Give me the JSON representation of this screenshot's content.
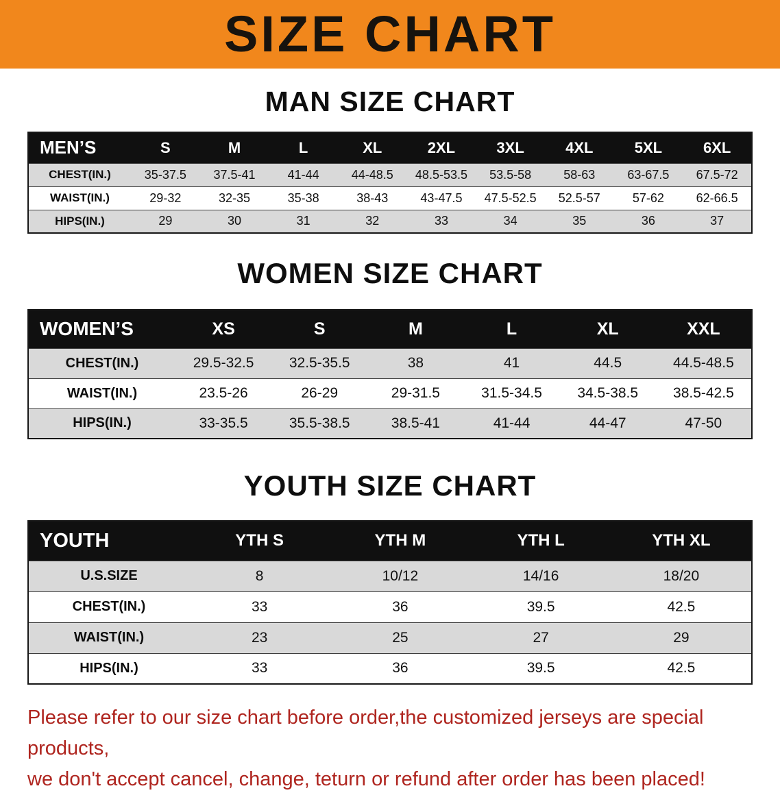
{
  "banner": {
    "title": "SIZE CHART"
  },
  "colors": {
    "banner_bg": "#F1871C",
    "header_bg": "#101010",
    "row_alt": "#d9d9d9",
    "note_red": "#AF251F"
  },
  "sections": [
    {
      "heading": "MAN SIZE CHART",
      "table": {
        "title": "MEN’S",
        "header": [
          "MEN’S",
          "S",
          "M",
          "L",
          "XL",
          "2XL",
          "3XL",
          "4XL",
          "5XL",
          "6XL"
        ],
        "rows": [
          [
            "CHEST(IN.)",
            "35-37.5",
            "37.5-41",
            "41-44",
            "44-48.5",
            "48.5-53.5",
            "53.5-58",
            "58-63",
            "63-67.5",
            "67.5-72"
          ],
          [
            "WAIST(IN.)",
            "29-32",
            "32-35",
            "35-38",
            "38-43",
            "43-47.5",
            "47.5-52.5",
            "52.5-57",
            "57-62",
            "62-66.5"
          ],
          [
            "HIPS(IN.)",
            "29",
            "30",
            "31",
            "32",
            "33",
            "34",
            "35",
            "36",
            "37"
          ]
        ]
      }
    },
    {
      "heading": "WOMEN SIZE CHART",
      "table": {
        "title": "WOMEN’S",
        "header": [
          "WOMEN’S",
          "XS",
          "S",
          "M",
          "L",
          "XL",
          "XXL"
        ],
        "rows": [
          [
            "CHEST(IN.)",
            "29.5-32.5",
            "32.5-35.5",
            "38",
            "41",
            "44.5",
            "44.5-48.5"
          ],
          [
            "WAIST(IN.)",
            "23.5-26",
            "26-29",
            "29-31.5",
            "31.5-34.5",
            "34.5-38.5",
            "38.5-42.5"
          ],
          [
            "HIPS(IN.)",
            "33-35.5",
            "35.5-38.5",
            "38.5-41",
            "41-44",
            "44-47",
            "47-50"
          ]
        ]
      }
    },
    {
      "heading": "YOUTH SIZE CHART",
      "table": {
        "title": "YOUTH",
        "header": [
          "YOUTH",
          "YTH S",
          "YTH M",
          "YTH L",
          "YTH XL"
        ],
        "rows": [
          [
            "U.S.SIZE",
            "8",
            "10/12",
            "14/16",
            "18/20"
          ],
          [
            "CHEST(IN.)",
            "33",
            "36",
            "39.5",
            "42.5"
          ],
          [
            "WAIST(IN.)",
            "23",
            "25",
            "27",
            "29"
          ],
          [
            "HIPS(IN.)",
            "33",
            "36",
            "39.5",
            "42.5"
          ]
        ]
      }
    }
  ],
  "note": {
    "lines": [
      "Please refer to our size chart before order,the customized jerseys are special products,",
      "we don't accept cancel, change, teturn or refund after order has been placed!"
    ]
  }
}
